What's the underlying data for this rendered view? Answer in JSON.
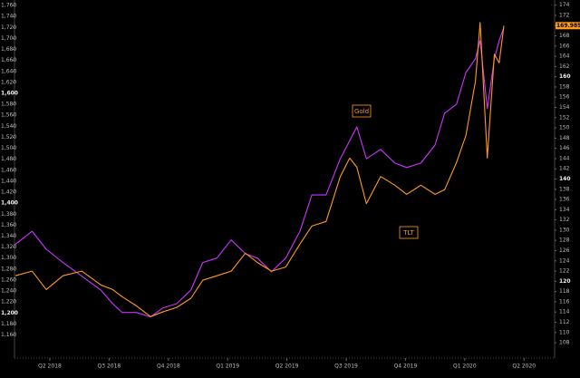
{
  "chart_data": {
    "type": "line",
    "annotations": [
      "Gold",
      "TLT"
    ],
    "x": [
      2018.23,
      2018.3,
      2018.36,
      2018.43,
      2018.51,
      2018.59,
      2018.64,
      2018.68,
      2018.74,
      2018.8,
      2018.85,
      2018.91,
      2018.97,
      2019.02,
      2019.08,
      2019.14,
      2019.2,
      2019.25,
      2019.31,
      2019.37,
      2019.43,
      2019.48,
      2019.54,
      2019.6,
      2019.64,
      2019.67,
      2019.71,
      2019.77,
      2019.83,
      2019.88,
      2019.94,
      2020.0,
      2020.04,
      2020.09,
      2020.13,
      2020.17,
      2020.19,
      2020.22,
      2020.25,
      2020.27,
      2020.29
    ],
    "series": [
      {
        "name": "Gold",
        "color": "#cc33ff",
        "axis": "y",
        "values": [
          1325,
          1349,
          1316,
          1292,
          1267,
          1242,
          1217,
          1201,
          1201,
          1193,
          1209,
          1217,
          1242,
          1292,
          1300,
          1333,
          1308,
          1300,
          1275,
          1300,
          1349,
          1415,
          1415,
          1481,
          1514,
          1539,
          1481,
          1498,
          1473,
          1465,
          1473,
          1506,
          1564,
          1580,
          1638,
          1663,
          1696,
          1572,
          1663,
          1696,
          1720
        ]
      },
      {
        "name": "TLT",
        "color": "#ff9a1a",
        "axis": "y2",
        "values": [
          121.1,
          122.0,
          118.4,
          121.1,
          122.0,
          119.3,
          118.4,
          117.0,
          115.2,
          113.1,
          114.0,
          114.9,
          116.7,
          120.2,
          121.1,
          122.0,
          125.5,
          123.7,
          122.0,
          122.8,
          127.3,
          130.8,
          131.7,
          140.5,
          144.1,
          142.3,
          135.2,
          140.5,
          138.8,
          137.0,
          138.8,
          137.0,
          137.9,
          143.2,
          148.5,
          159.1,
          170.6,
          144.1,
          164.4,
          162.7,
          169.985
        ],
        "value_labels": [
          null,
          null,
          null,
          null,
          null,
          null,
          null,
          null,
          null,
          null,
          null,
          null,
          null,
          null,
          null,
          null,
          null,
          null,
          null,
          null,
          null,
          null,
          null,
          null,
          null,
          null,
          null,
          null,
          null,
          null,
          null,
          null,
          null,
          null,
          null,
          null,
          null,
          null,
          null,
          null,
          "169.9850"
        ]
      }
    ],
    "xlim": [
      2018.226,
      2020.504
    ],
    "xticks": [
      {
        "value": 2018.375,
        "label": "Q2 2018"
      },
      {
        "value": 2018.625,
        "label": "Q3 2018"
      },
      {
        "value": 2018.875,
        "label": "Q4 2018"
      },
      {
        "value": 2019.125,
        "label": "Q1 2019"
      },
      {
        "value": 2019.375,
        "label": "Q2 2019"
      },
      {
        "value": 2019.625,
        "label": "Q3 2019"
      },
      {
        "value": 2019.875,
        "label": "Q4 2019"
      },
      {
        "value": 2020.125,
        "label": "Q1 2020"
      },
      {
        "value": 2020.375,
        "label": "Q2 2020"
      }
    ],
    "ylim": [
      1118,
      1770
    ],
    "yticks": [
      {
        "value": 1160,
        "label": "1,160"
      },
      {
        "value": 1180,
        "label": "1,180"
      },
      {
        "value": 1200,
        "label": "1,200"
      },
      {
        "value": 1220,
        "label": "1,220"
      },
      {
        "value": 1240,
        "label": "1,240"
      },
      {
        "value": 1260,
        "label": "1,260"
      },
      {
        "value": 1280,
        "label": "1,280"
      },
      {
        "value": 1300,
        "label": "1,300"
      },
      {
        "value": 1320,
        "label": "1,320"
      },
      {
        "value": 1340,
        "label": "1,340"
      },
      {
        "value": 1360,
        "label": "1,360"
      },
      {
        "value": 1380,
        "label": "1,380"
      },
      {
        "value": 1400,
        "label": "1,400"
      },
      {
        "value": 1420,
        "label": "1,420"
      },
      {
        "value": 1440,
        "label": "1,440"
      },
      {
        "value": 1460,
        "label": "1,460"
      },
      {
        "value": 1480,
        "label": "1,480"
      },
      {
        "value": 1500,
        "label": "1,500"
      },
      {
        "value": 1520,
        "label": "1,520"
      },
      {
        "value": 1540,
        "label": "1,540"
      },
      {
        "value": 1560,
        "label": "1,560"
      },
      {
        "value": 1580,
        "label": "1,580"
      },
      {
        "value": 1600,
        "label": "1,600"
      },
      {
        "value": 1620,
        "label": "1,620"
      },
      {
        "value": 1640,
        "label": "1,640"
      },
      {
        "value": 1660,
        "label": "1,660"
      },
      {
        "value": 1680,
        "label": "1,680"
      },
      {
        "value": 1700,
        "label": "1,700"
      },
      {
        "value": 1720,
        "label": "1,720"
      },
      {
        "value": 1740,
        "label": "1,740"
      },
      {
        "value": 1760,
        "label": "1,760"
      }
    ],
    "y2lim": [
      105,
      175
    ],
    "y2ticks": [
      108,
      110,
      112,
      114,
      116,
      118,
      120,
      122,
      124,
      126,
      128,
      130,
      132,
      134,
      136,
      138,
      140,
      142,
      144,
      146,
      148,
      150,
      152,
      154,
      156,
      158,
      160,
      162,
      164,
      166,
      168,
      170,
      172,
      174
    ],
    "grid": false
  }
}
